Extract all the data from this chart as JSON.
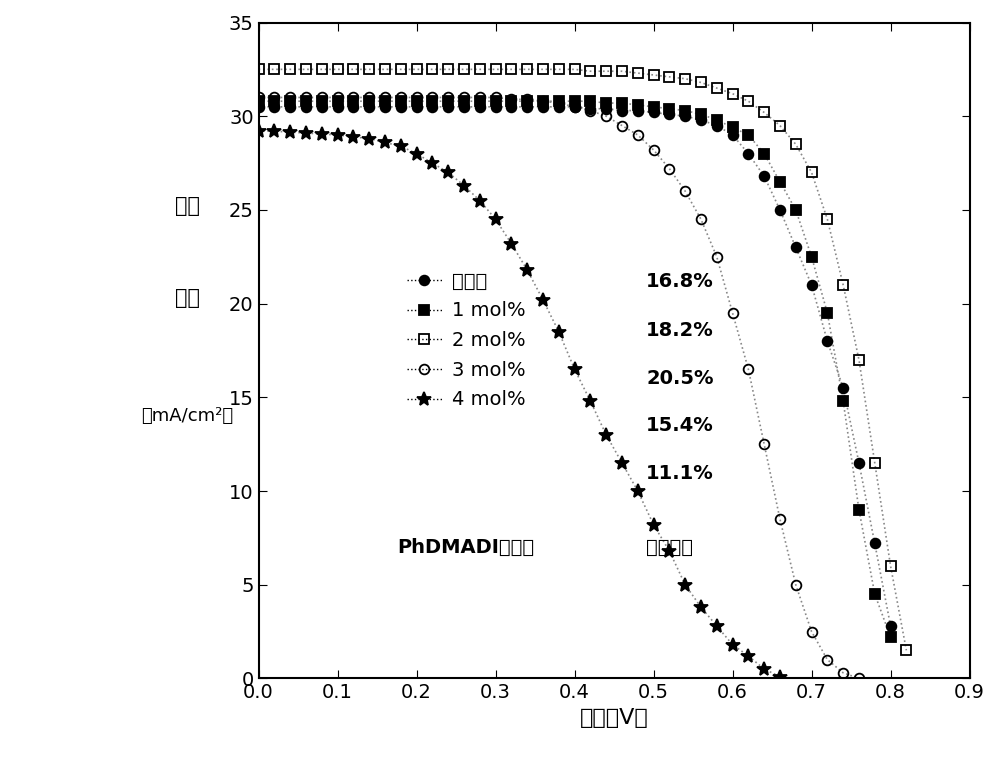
{
  "title": "",
  "xlabel": "电压（V）",
  "ylabel_lines": [
    "电流",
    "密度",
    "（mA/cm²）"
  ],
  "xlim": [
    0.0,
    0.9
  ],
  "ylim": [
    0.0,
    35
  ],
  "xticks": [
    0.0,
    0.1,
    0.2,
    0.3,
    0.4,
    0.5,
    0.6,
    0.7,
    0.8,
    0.9
  ],
  "yticks": [
    0,
    5,
    10,
    15,
    20,
    25,
    30,
    35
  ],
  "series": [
    {
      "label": "未添加",
      "efficiency": "16.8%",
      "marker": "o",
      "fillstyle": "full",
      "color": "black",
      "markersize": 7,
      "x": [
        0.0,
        0.02,
        0.04,
        0.06,
        0.08,
        0.1,
        0.12,
        0.14,
        0.16,
        0.18,
        0.2,
        0.22,
        0.24,
        0.26,
        0.28,
        0.3,
        0.32,
        0.34,
        0.36,
        0.38,
        0.4,
        0.42,
        0.44,
        0.46,
        0.48,
        0.5,
        0.52,
        0.54,
        0.56,
        0.58,
        0.6,
        0.62,
        0.64,
        0.66,
        0.68,
        0.7,
        0.72,
        0.74,
        0.76,
        0.78,
        0.8
      ],
      "y": [
        30.5,
        30.5,
        30.5,
        30.5,
        30.5,
        30.5,
        30.5,
        30.5,
        30.5,
        30.5,
        30.5,
        30.5,
        30.5,
        30.5,
        30.5,
        30.5,
        30.5,
        30.5,
        30.5,
        30.5,
        30.5,
        30.4,
        30.4,
        30.3,
        30.3,
        30.2,
        30.1,
        30.0,
        29.8,
        29.5,
        29.0,
        28.0,
        26.8,
        25.0,
        23.0,
        21.0,
        18.0,
        15.5,
        11.5,
        7.2,
        2.8
      ]
    },
    {
      "label": "1 mol%",
      "efficiency": "18.2%",
      "marker": "s",
      "fillstyle": "full",
      "color": "black",
      "markersize": 7,
      "x": [
        0.0,
        0.02,
        0.04,
        0.06,
        0.08,
        0.1,
        0.12,
        0.14,
        0.16,
        0.18,
        0.2,
        0.22,
        0.24,
        0.26,
        0.28,
        0.3,
        0.32,
        0.34,
        0.36,
        0.38,
        0.4,
        0.42,
        0.44,
        0.46,
        0.48,
        0.5,
        0.52,
        0.54,
        0.56,
        0.58,
        0.6,
        0.62,
        0.64,
        0.66,
        0.68,
        0.7,
        0.72,
        0.74,
        0.76,
        0.78,
        0.8
      ],
      "y": [
        30.8,
        30.8,
        30.8,
        30.8,
        30.8,
        30.8,
        30.8,
        30.8,
        30.8,
        30.8,
        30.8,
        30.8,
        30.8,
        30.8,
        30.8,
        30.8,
        30.8,
        30.8,
        30.8,
        30.8,
        30.8,
        30.8,
        30.7,
        30.7,
        30.6,
        30.5,
        30.4,
        30.3,
        30.1,
        29.8,
        29.4,
        29.0,
        28.0,
        26.5,
        25.0,
        22.5,
        19.5,
        14.8,
        9.0,
        4.5,
        2.2
      ]
    },
    {
      "label": "2 mol%",
      "efficiency": "20.5%",
      "marker": "s",
      "fillstyle": "none",
      "color": "black",
      "markersize": 7,
      "x": [
        0.0,
        0.02,
        0.04,
        0.06,
        0.08,
        0.1,
        0.12,
        0.14,
        0.16,
        0.18,
        0.2,
        0.22,
        0.24,
        0.26,
        0.28,
        0.3,
        0.32,
        0.34,
        0.36,
        0.38,
        0.4,
        0.42,
        0.44,
        0.46,
        0.48,
        0.5,
        0.52,
        0.54,
        0.56,
        0.58,
        0.6,
        0.62,
        0.64,
        0.66,
        0.68,
        0.7,
        0.72,
        0.74,
        0.76,
        0.78,
        0.8,
        0.82
      ],
      "y": [
        32.5,
        32.5,
        32.5,
        32.5,
        32.5,
        32.5,
        32.5,
        32.5,
        32.5,
        32.5,
        32.5,
        32.5,
        32.5,
        32.5,
        32.5,
        32.5,
        32.5,
        32.5,
        32.5,
        32.5,
        32.5,
        32.4,
        32.4,
        32.4,
        32.3,
        32.2,
        32.1,
        32.0,
        31.8,
        31.5,
        31.2,
        30.8,
        30.2,
        29.5,
        28.5,
        27.0,
        24.5,
        21.0,
        17.0,
        11.5,
        6.0,
        1.5
      ]
    },
    {
      "label": "3 mol%",
      "efficiency": "15.4%",
      "marker": "o",
      "fillstyle": "none",
      "color": "black",
      "markersize": 7,
      "x": [
        0.0,
        0.02,
        0.04,
        0.06,
        0.08,
        0.1,
        0.12,
        0.14,
        0.16,
        0.18,
        0.2,
        0.22,
        0.24,
        0.26,
        0.28,
        0.3,
        0.32,
        0.34,
        0.36,
        0.38,
        0.4,
        0.42,
        0.44,
        0.46,
        0.48,
        0.5,
        0.52,
        0.54,
        0.56,
        0.58,
        0.6,
        0.62,
        0.64,
        0.66,
        0.68,
        0.7,
        0.72,
        0.74,
        0.76
      ],
      "y": [
        31.0,
        31.0,
        31.0,
        31.0,
        31.0,
        31.0,
        31.0,
        31.0,
        31.0,
        31.0,
        31.0,
        31.0,
        31.0,
        31.0,
        31.0,
        31.0,
        30.9,
        30.9,
        30.8,
        30.7,
        30.5,
        30.3,
        30.0,
        29.5,
        29.0,
        28.2,
        27.2,
        26.0,
        24.5,
        22.5,
        19.5,
        16.5,
        12.5,
        8.5,
        5.0,
        2.5,
        1.0,
        0.3,
        0.0
      ]
    },
    {
      "label": "4 mol%",
      "efficiency": "11.1%",
      "marker": "*",
      "fillstyle": "full",
      "color": "black",
      "markersize": 10,
      "x": [
        0.0,
        0.02,
        0.04,
        0.06,
        0.08,
        0.1,
        0.12,
        0.14,
        0.16,
        0.18,
        0.2,
        0.22,
        0.24,
        0.26,
        0.28,
        0.3,
        0.32,
        0.34,
        0.36,
        0.38,
        0.4,
        0.42,
        0.44,
        0.46,
        0.48,
        0.5,
        0.52,
        0.54,
        0.56,
        0.58,
        0.6,
        0.62,
        0.64,
        0.66
      ],
      "y": [
        29.2,
        29.2,
        29.15,
        29.1,
        29.05,
        29.0,
        28.9,
        28.8,
        28.6,
        28.4,
        28.0,
        27.5,
        27.0,
        26.3,
        25.5,
        24.5,
        23.2,
        21.8,
        20.2,
        18.5,
        16.5,
        14.8,
        13.0,
        11.5,
        10.0,
        8.2,
        6.8,
        5.0,
        3.8,
        2.8,
        1.8,
        1.2,
        0.5,
        0.1
      ]
    }
  ],
  "efficiencies": [
    "16.8%",
    "18.2%",
    "20.5%",
    "15.4%",
    "11.1%"
  ],
  "annotation_label": "PhDMADI添加量",
  "annotation_efficiency": "器件效率",
  "background_color": "#ffffff",
  "line_style": ":",
  "line_color": "#888888",
  "line_width": 1.2
}
